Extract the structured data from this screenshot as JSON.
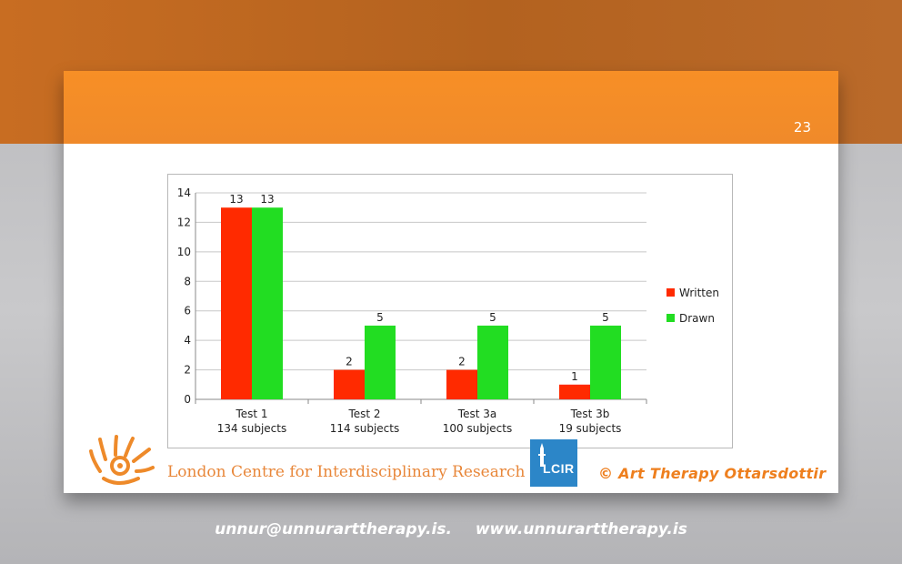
{
  "slide": {
    "number": "23",
    "org_name": "London Centre for Interdisciplinary Research",
    "lcir_logo_text": "LCIR",
    "copyright": "© Art Therapy Ottarsdottir"
  },
  "contact": {
    "email": "unnur@unnurarttherapy.is.",
    "website": "www.unnurarttherapy.is"
  },
  "colors": {
    "header_orange": "#f78f26",
    "written": "#ff2a00",
    "drawn": "#22dd22",
    "accent_text": "#e8873a"
  },
  "chart_data": {
    "type": "bar",
    "categories": [
      "Test 1\n134 subjects",
      "Test 2\n114 subjects",
      "Test 3a\n100 subjects",
      "Test 3b\n19 subjects"
    ],
    "series": [
      {
        "name": "Written",
        "values": [
          13,
          2,
          2,
          1
        ],
        "color": "#ff2a00"
      },
      {
        "name": "Drawn",
        "values": [
          13,
          5,
          5,
          5
        ],
        "color": "#22dd22"
      }
    ],
    "ylim": [
      0,
      14
    ],
    "yticks": [
      0,
      2,
      4,
      6,
      8,
      10,
      12,
      14
    ],
    "grid": true,
    "legend": "right",
    "data_labels": true
  }
}
